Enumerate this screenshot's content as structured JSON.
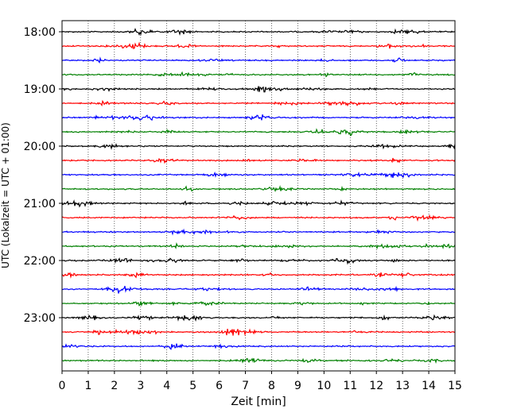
{
  "chart_data": {
    "type": "line",
    "title": "",
    "xlabel": "Zeit  [min]",
    "ylabel": "UTC (Lokalzeit = UTC + 01:00)",
    "xlim": [
      0,
      15
    ],
    "x_ticks": [
      0,
      1,
      2,
      3,
      4,
      5,
      6,
      7,
      8,
      9,
      10,
      11,
      12,
      13,
      14,
      15
    ],
    "x_tick_labels": [
      "0",
      "1",
      "2",
      "3",
      "4",
      "5",
      "6",
      "7",
      "8",
      "9",
      "10",
      "11",
      "12",
      "13",
      "14",
      "15"
    ],
    "y_tick_labels": [
      "18:00",
      "19:00",
      "20:00",
      "21:00",
      "22:00",
      "23:00"
    ],
    "y_tick_trace_index": [
      0,
      4,
      8,
      12,
      16,
      20
    ],
    "trace_count": 24,
    "trace_interval_minutes": 15,
    "trace_colors": [
      "#000000",
      "#ff0000",
      "#0000ff",
      "#008000"
    ],
    "grid": true,
    "grid_style": "dotted-vertical",
    "legend": "none"
  }
}
